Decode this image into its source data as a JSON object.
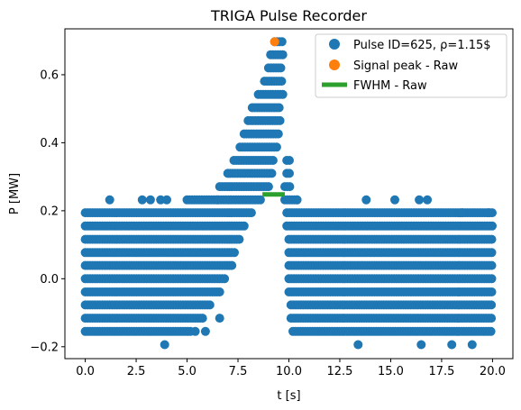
{
  "chart_data": {
    "type": "scatter",
    "title": "TRIGA Pulse Recorder",
    "xlabel": "t [s]",
    "ylabel": "P [MW]",
    "xlim": [
      -1.0,
      21.0
    ],
    "ylim": [
      -0.235,
      0.735
    ],
    "xticks": [
      0.0,
      2.5,
      5.0,
      7.5,
      10.0,
      12.5,
      15.0,
      17.5,
      20.0
    ],
    "xtick_labels": [
      "0.0",
      "2.5",
      "5.0",
      "7.5",
      "10.0",
      "12.5",
      "15.0",
      "17.5",
      "20.0"
    ],
    "yticks": [
      -0.2,
      0.0,
      0.2,
      0.4,
      0.6
    ],
    "ytick_labels": [
      "−0.2",
      "0.0",
      "0.2",
      "0.4",
      "0.6"
    ],
    "grid": false,
    "legend_position": "top-right",
    "series": [
      {
        "name": "Pulse ID=625, ρ=1.15$",
        "kind": "scatter",
        "color": "#1f77b4",
        "description_bands": [
          {
            "y": -0.155,
            "x_start": 0.0,
            "x_end": 5.2
          },
          {
            "y": -0.116,
            "x_start": 0.0,
            "x_end": 5.8
          },
          {
            "y": -0.077,
            "x_start": 0.0,
            "x_end": 6.2
          },
          {
            "y": -0.039,
            "x_start": 0.0,
            "x_end": 6.6
          },
          {
            "y": 0.0,
            "x_start": 0.0,
            "x_end": 6.9
          },
          {
            "y": 0.039,
            "x_start": 0.0,
            "x_end": 7.2
          },
          {
            "y": 0.077,
            "x_start": 0.0,
            "x_end": 7.4
          },
          {
            "y": 0.116,
            "x_start": 0.0,
            "x_end": 7.6
          },
          {
            "y": 0.155,
            "x_start": 0.0,
            "x_end": 7.9
          },
          {
            "y": 0.194,
            "x_start": 0.0,
            "x_end": 8.2
          },
          {
            "y": 0.232,
            "x_start": 5.0,
            "x_end": 8.7
          },
          {
            "y": 0.271,
            "x_start": 6.6,
            "x_end": 9.0
          },
          {
            "y": 0.31,
            "x_start": 7.0,
            "x_end": 9.2
          },
          {
            "y": 0.348,
            "x_start": 7.3,
            "x_end": 9.3
          },
          {
            "y": 0.387,
            "x_start": 7.6,
            "x_end": 9.4
          },
          {
            "y": 0.426,
            "x_start": 7.8,
            "x_end": 9.5
          },
          {
            "y": 0.465,
            "x_start": 8.0,
            "x_end": 9.6
          },
          {
            "y": 0.503,
            "x_start": 8.2,
            "x_end": 9.6
          },
          {
            "y": 0.542,
            "x_start": 8.5,
            "x_end": 9.7
          },
          {
            "y": 0.581,
            "x_start": 8.8,
            "x_end": 9.7
          },
          {
            "y": 0.62,
            "x_start": 9.0,
            "x_end": 9.7
          },
          {
            "y": 0.659,
            "x_start": 9.1,
            "x_end": 9.7
          },
          {
            "y": 0.697,
            "x_start": 9.3,
            "x_end": 9.7
          },
          {
            "y": -0.155,
            "x_start": 10.2,
            "x_end": 20.0
          },
          {
            "y": -0.116,
            "x_start": 10.1,
            "x_end": 20.0
          },
          {
            "y": -0.077,
            "x_start": 10.1,
            "x_end": 20.0
          },
          {
            "y": -0.039,
            "x_start": 10.0,
            "x_end": 20.0
          },
          {
            "y": 0.0,
            "x_start": 10.0,
            "x_end": 20.0
          },
          {
            "y": 0.039,
            "x_start": 10.0,
            "x_end": 20.0
          },
          {
            "y": 0.077,
            "x_start": 10.0,
            "x_end": 20.0
          },
          {
            "y": 0.116,
            "x_start": 10.0,
            "x_end": 20.0
          },
          {
            "y": 0.155,
            "x_start": 9.9,
            "x_end": 20.0
          },
          {
            "y": 0.194,
            "x_start": 9.9,
            "x_end": 20.0
          },
          {
            "y": 0.232,
            "x_start": 9.8,
            "x_end": 10.4
          },
          {
            "y": 0.271,
            "x_start": 9.8,
            "x_end": 10.1
          },
          {
            "y": 0.31,
            "x_start": 9.9,
            "x_end": 10.1
          },
          {
            "y": 0.348,
            "x_start": 9.9,
            "x_end": 10.1
          }
        ],
        "isolated_points": [
          {
            "x": 1.2,
            "y": 0.232
          },
          {
            "x": 2.8,
            "y": 0.232
          },
          {
            "x": 3.2,
            "y": 0.232
          },
          {
            "x": 3.7,
            "y": 0.232
          },
          {
            "x": 4.0,
            "y": 0.232
          },
          {
            "x": 3.9,
            "y": -0.194
          },
          {
            "x": 5.4,
            "y": -0.155
          },
          {
            "x": 5.9,
            "y": -0.155
          },
          {
            "x": 6.6,
            "y": -0.116
          },
          {
            "x": 6.5,
            "y": 0.232
          },
          {
            "x": 10.4,
            "y": 0.232
          },
          {
            "x": 13.4,
            "y": -0.194
          },
          {
            "x": 13.8,
            "y": 0.232
          },
          {
            "x": 15.2,
            "y": 0.232
          },
          {
            "x": 16.4,
            "y": 0.232
          },
          {
            "x": 16.8,
            "y": 0.232
          },
          {
            "x": 16.5,
            "y": -0.194
          },
          {
            "x": 18.0,
            "y": -0.194
          },
          {
            "x": 19.0,
            "y": -0.194
          },
          {
            "x": 18.5,
            "y": 0.194
          },
          {
            "x": 19.8,
            "y": 0.194
          }
        ]
      },
      {
        "name": "Signal peak - Raw",
        "kind": "scatter",
        "color": "#ff7f0e",
        "points": [
          {
            "x": 9.3,
            "y": 0.697
          }
        ]
      },
      {
        "name": "FWHM - Raw",
        "kind": "line",
        "color": "#2ca02c",
        "points": [
          {
            "x": 8.7,
            "y": 0.248
          },
          {
            "x": 9.8,
            "y": 0.248
          }
        ]
      }
    ]
  }
}
